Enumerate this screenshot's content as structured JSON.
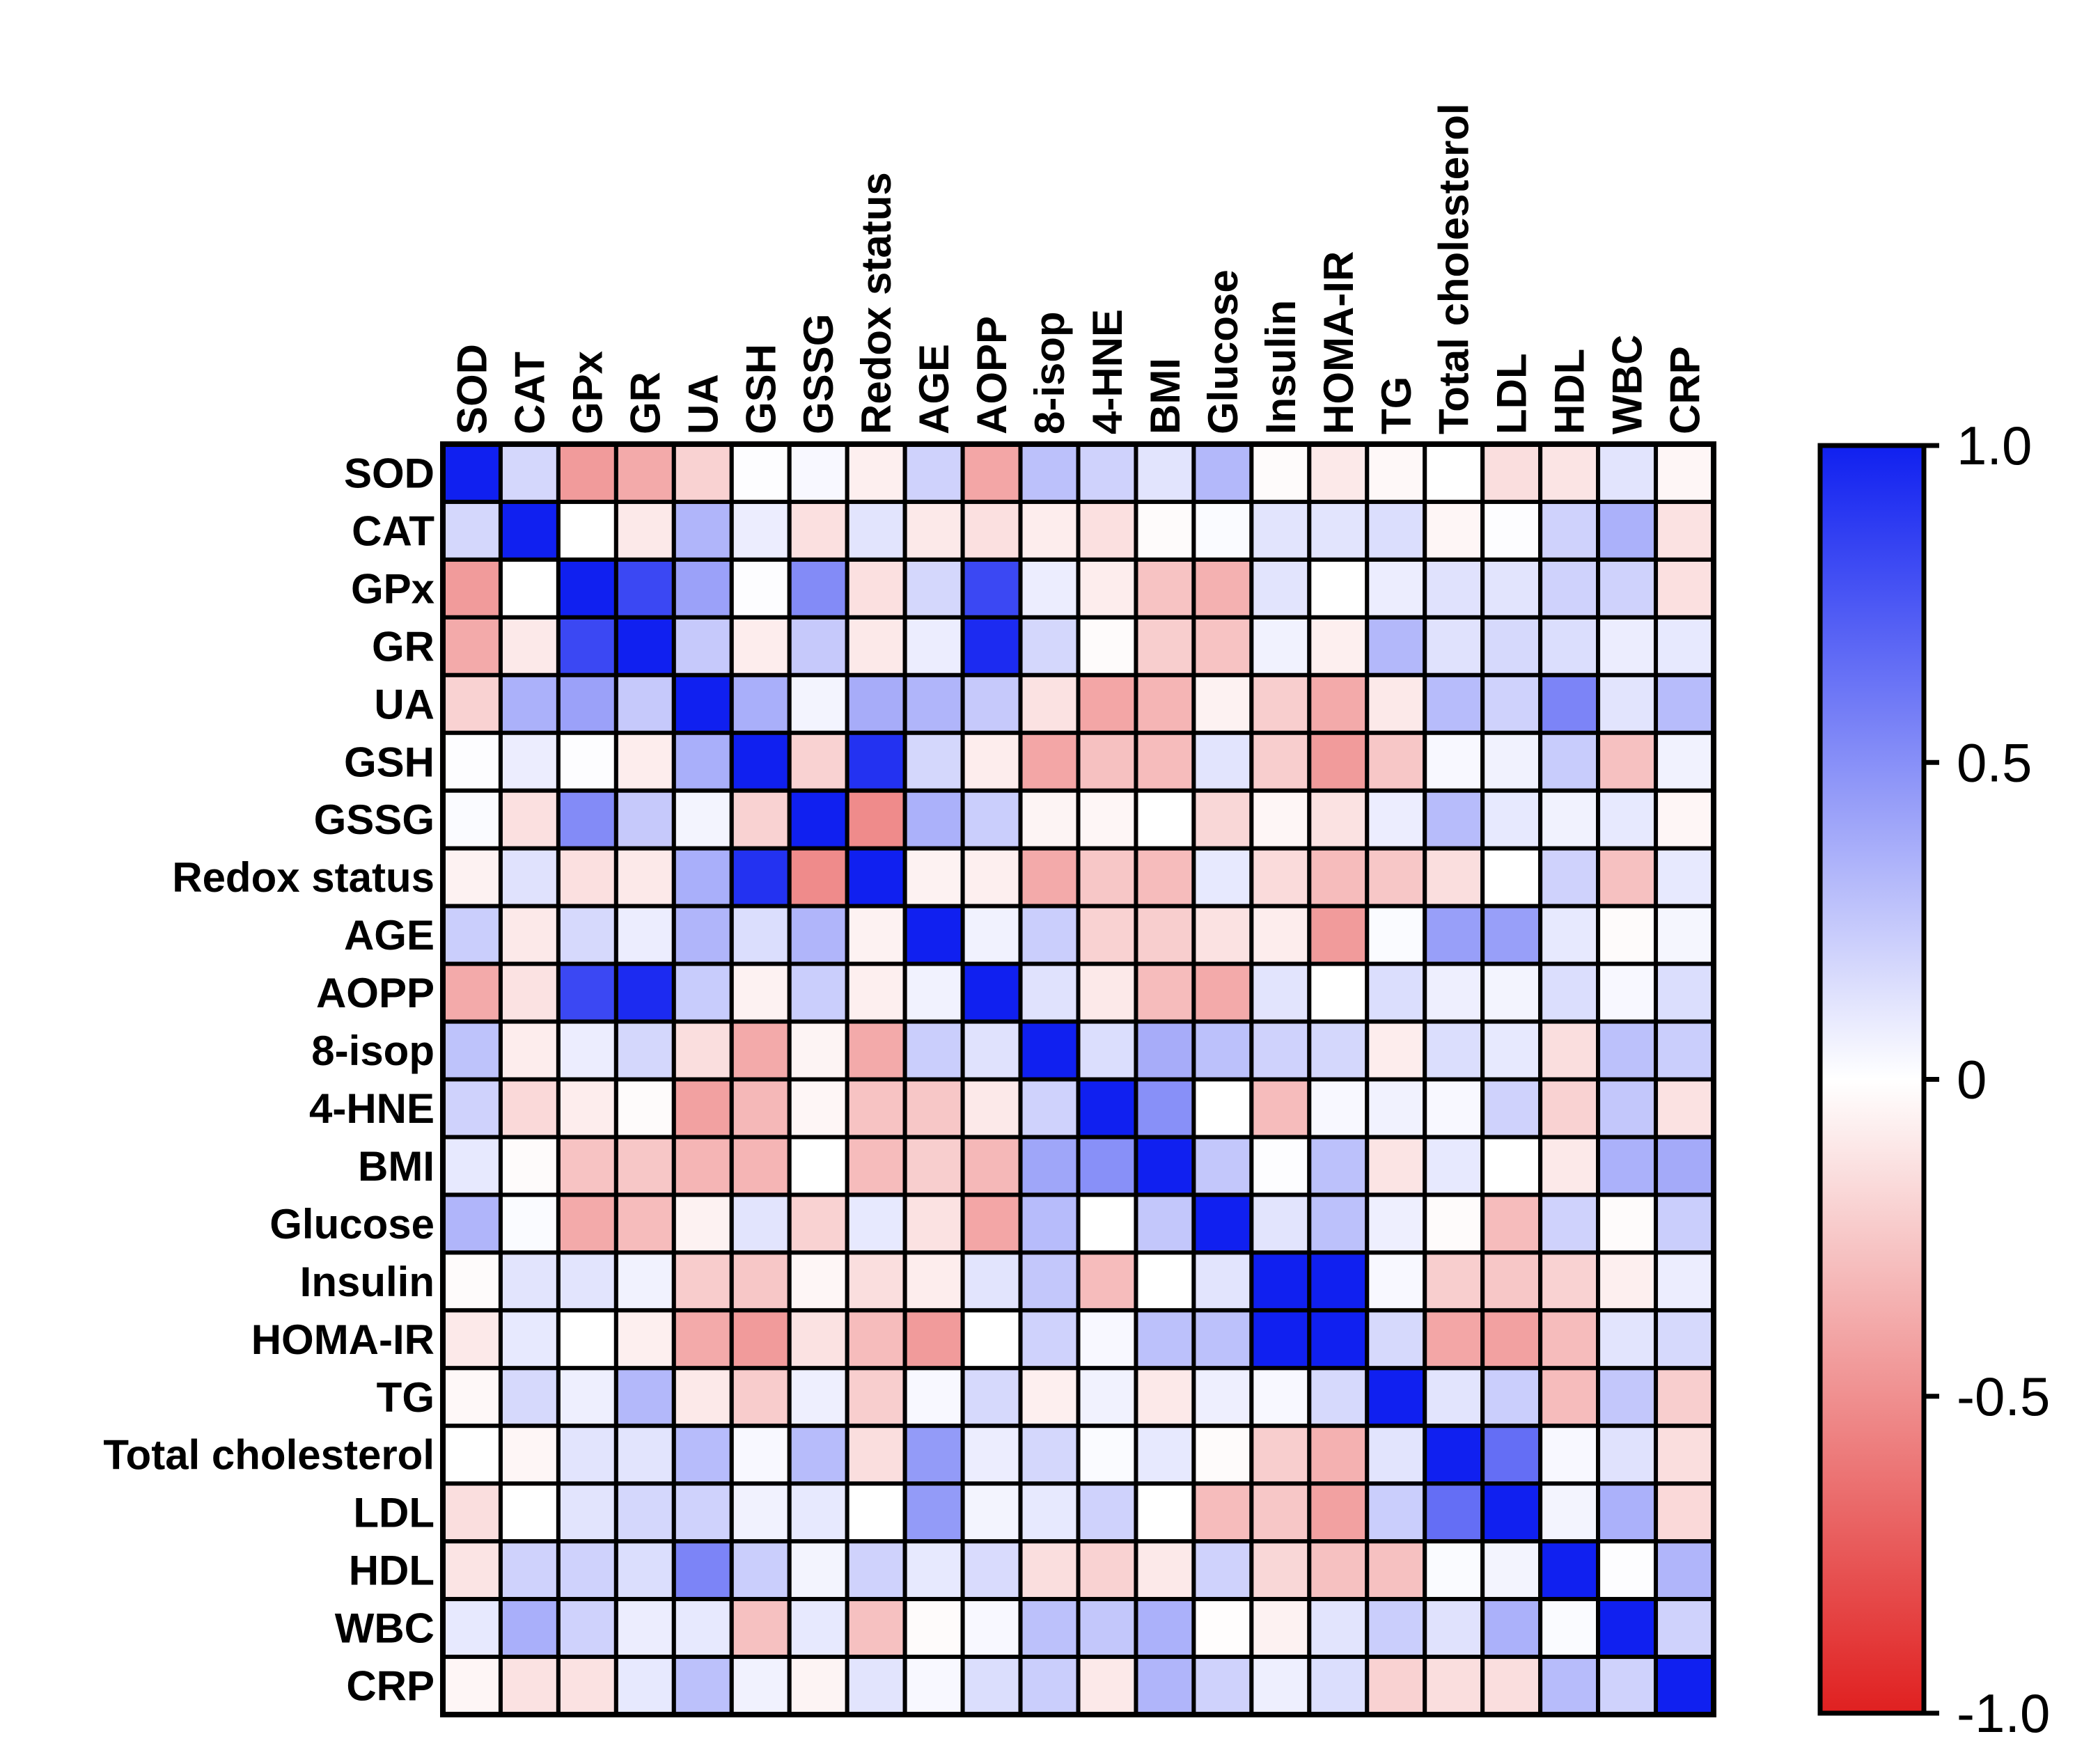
{
  "chart_data": {
    "type": "heatmap",
    "title": "",
    "labels": [
      "SOD",
      "CAT",
      "GPx",
      "GR",
      "UA",
      "GSH",
      "GSSG",
      "Redox status",
      "AGE",
      "AOPP",
      "8-isop",
      "4-HNE",
      "BMI",
      "Glucose",
      "Insulin",
      "HOMA-IR",
      "TG",
      "Total cholesterol",
      "LDL",
      "HDL",
      "WBC",
      "CRP"
    ],
    "values": [
      [
        1,
        0.18,
        -0.45,
        -0.38,
        -0.2,
        0.01,
        0.03,
        -0.07,
        0.2,
        -0.4,
        0.28,
        0.2,
        0.12,
        0.32,
        -0.02,
        -0.1,
        -0.03,
        0,
        -0.15,
        -0.12,
        0.12,
        -0.04
      ],
      [
        0.18,
        1,
        0,
        -0.1,
        0.33,
        0.08,
        -0.14,
        0.12,
        -0.1,
        -0.14,
        -0.08,
        -0.14,
        -0.02,
        0.02,
        0.12,
        0.12,
        0.15,
        -0.04,
        0.01,
        0.2,
        0.35,
        -0.13
      ],
      [
        -0.45,
        0,
        1,
        0.82,
        0.42,
        0.01,
        0.52,
        -0.14,
        0.18,
        0.82,
        0.08,
        -0.08,
        -0.27,
        -0.35,
        0.12,
        0,
        0.08,
        0.13,
        0.12,
        0.2,
        0.2,
        -0.14
      ],
      [
        -0.38,
        -0.1,
        0.82,
        1,
        0.24,
        -0.08,
        0.24,
        -0.1,
        0.08,
        0.95,
        0.18,
        -0.02,
        -0.22,
        -0.27,
        0.06,
        -0.07,
        0.32,
        0.13,
        0.17,
        0.15,
        0.08,
        0.1
      ],
      [
        -0.2,
        0.35,
        0.42,
        0.24,
        1,
        0.36,
        0.05,
        0.37,
        0.33,
        0.24,
        -0.13,
        -0.4,
        -0.33,
        -0.06,
        -0.22,
        -0.38,
        -0.1,
        0.3,
        0.2,
        0.55,
        0.12,
        0.3
      ],
      [
        0.01,
        0.08,
        0.01,
        -0.08,
        0.36,
        1,
        -0.2,
        0.92,
        0.18,
        -0.08,
        -0.4,
        -0.28,
        -0.3,
        0.12,
        -0.22,
        -0.45,
        -0.25,
        0.03,
        0.06,
        0.23,
        -0.28,
        0.06
      ],
      [
        0.02,
        -0.14,
        0.52,
        0.24,
        0.05,
        -0.2,
        1,
        -0.52,
        0.35,
        0.22,
        -0.05,
        -0.04,
        0,
        -0.18,
        -0.04,
        -0.13,
        0.08,
        0.3,
        0.1,
        0.06,
        0.1,
        -0.04
      ],
      [
        -0.06,
        0.13,
        -0.14,
        -0.1,
        0.36,
        0.92,
        -0.52,
        1,
        -0.06,
        -0.07,
        -0.38,
        -0.25,
        -0.3,
        0.1,
        -0.16,
        -0.3,
        -0.25,
        -0.15,
        0,
        0.2,
        -0.28,
        0.1
      ],
      [
        0.22,
        -0.1,
        0.17,
        0.08,
        0.33,
        0.15,
        0.33,
        -0.06,
        1,
        0.06,
        0.22,
        -0.2,
        -0.22,
        -0.13,
        -0.08,
        -0.45,
        0.02,
        0.43,
        0.43,
        0.1,
        -0.02,
        0.04
      ],
      [
        -0.38,
        -0.13,
        0.82,
        0.95,
        0.23,
        -0.06,
        0.22,
        -0.07,
        0.06,
        1,
        0.13,
        -0.1,
        -0.3,
        -0.38,
        0.12,
        0,
        0.15,
        0.07,
        0.05,
        0.15,
        0.03,
        0.15
      ],
      [
        0.27,
        -0.08,
        0.08,
        0.18,
        -0.15,
        -0.38,
        -0.05,
        -0.38,
        0.22,
        0.13,
        1,
        0.15,
        0.37,
        0.28,
        0.2,
        0.18,
        -0.08,
        0.15,
        0.1,
        -0.15,
        0.28,
        0.22
      ],
      [
        0.2,
        -0.17,
        -0.08,
        -0.02,
        -0.42,
        -0.32,
        -0.04,
        -0.27,
        -0.25,
        -0.1,
        0.2,
        1,
        0.5,
        0,
        -0.3,
        0.03,
        0.06,
        0.03,
        0.2,
        -0.2,
        0.25,
        -0.13
      ],
      [
        0.1,
        -0.02,
        -0.27,
        -0.25,
        -0.33,
        -0.33,
        0,
        -0.3,
        -0.22,
        -0.32,
        0.4,
        0.5,
        1,
        0.25,
        0.01,
        0.28,
        -0.12,
        0.1,
        0,
        -0.1,
        0.35,
        0.38
      ],
      [
        0.33,
        0.02,
        -0.38,
        -0.3,
        -0.06,
        0.12,
        -0.2,
        0.1,
        -0.13,
        -0.4,
        0.3,
        0,
        0.25,
        1,
        0.12,
        0.28,
        0.07,
        -0.02,
        -0.3,
        0.2,
        -0.02,
        0.22
      ],
      [
        -0.02,
        0.12,
        0.12,
        0.06,
        -0.23,
        -0.25,
        -0.04,
        -0.15,
        -0.08,
        0.12,
        0.25,
        -0.3,
        0,
        0.12,
        1,
        1,
        0.03,
        -0.22,
        -0.25,
        -0.2,
        -0.07,
        0.08
      ],
      [
        -0.1,
        0.1,
        0,
        -0.07,
        -0.38,
        -0.45,
        -0.13,
        -0.3,
        -0.45,
        0,
        0.2,
        0.03,
        0.28,
        0.28,
        1,
        1,
        0.17,
        -0.4,
        -0.42,
        -0.3,
        0.12,
        0.17
      ],
      [
        -0.03,
        0.17,
        0.07,
        0.32,
        -0.1,
        -0.23,
        0.07,
        -0.22,
        0.03,
        0.17,
        -0.07,
        0.06,
        -0.1,
        0.07,
        0.03,
        0.17,
        1,
        0.12,
        0.22,
        -0.3,
        0.25,
        -0.22
      ],
      [
        0,
        -0.04,
        0.12,
        0.12,
        0.3,
        0.03,
        0.3,
        -0.15,
        0.45,
        0.08,
        0.18,
        0.02,
        0.1,
        -0.02,
        -0.22,
        -0.35,
        0.12,
        1,
        0.65,
        0.03,
        0.13,
        -0.15
      ],
      [
        -0.15,
        0,
        0.12,
        0.18,
        0.2,
        0.06,
        0.1,
        0,
        0.45,
        0.05,
        0.1,
        0.2,
        0,
        -0.3,
        -0.25,
        -0.42,
        0.22,
        0.65,
        1,
        0.05,
        0.35,
        -0.17
      ],
      [
        -0.12,
        0.2,
        0.2,
        0.15,
        0.55,
        0.22,
        0.05,
        0.2,
        0.1,
        0.16,
        -0.15,
        -0.2,
        -0.1,
        0.2,
        -0.18,
        -0.28,
        -0.28,
        0.02,
        0.05,
        1,
        0.01,
        0.33
      ],
      [
        0.1,
        0.36,
        0.2,
        0.08,
        0.1,
        -0.28,
        0.1,
        -0.28,
        -0.02,
        0.03,
        0.28,
        0.25,
        0.35,
        -0.01,
        -0.06,
        0.12,
        0.22,
        0.13,
        0.35,
        0.02,
        1,
        0.2
      ],
      [
        -0.04,
        -0.13,
        -0.13,
        0.1,
        0.28,
        0.06,
        -0.05,
        0.12,
        0.03,
        0.15,
        0.22,
        -0.1,
        0.33,
        0.2,
        0.07,
        0.15,
        -0.2,
        -0.15,
        -0.15,
        0.3,
        0.2,
        1
      ]
    ],
    "colorbar": {
      "range": [
        -1.0,
        1.0
      ],
      "ticks": [
        "1.0",
        "0.5",
        "0",
        "-0.5",
        "-1.0"
      ],
      "tick_values": [
        1.0,
        0.5,
        0,
        -0.5,
        -1.0
      ],
      "colors": {
        "max": "#1020F0",
        "mid": "#FFFFFF",
        "min": "#E02020"
      }
    }
  }
}
